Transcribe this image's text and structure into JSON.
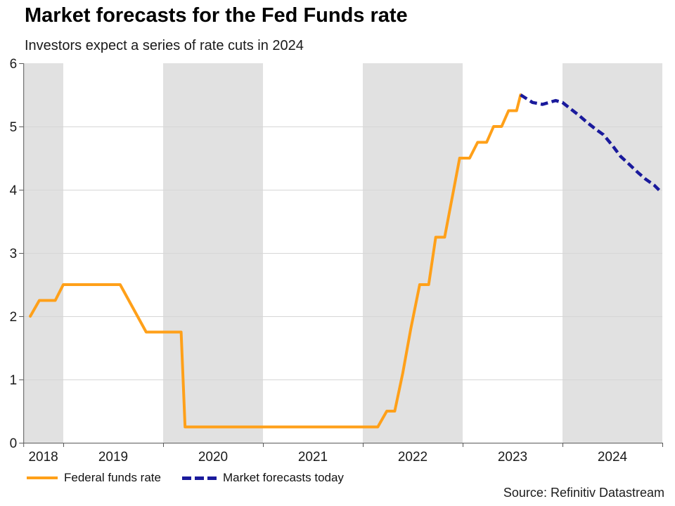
{
  "title": "Market forecasts for the Fed Funds rate",
  "subtitle": "Investors expect a series of rate cuts in 2024",
  "source": "Source: Refinitiv Datastream",
  "legend": [
    {
      "label": "Federal funds rate",
      "color": "#FFA019",
      "style": "solid"
    },
    {
      "label": "Market forecasts today",
      "color": "#1A1A9C",
      "style": "dashed"
    }
  ],
  "colors": {
    "federal_funds_line": "#FFA019",
    "forecast_line": "#1A1A9C",
    "year_band": "#E1E1E1",
    "gridline": "#D6D6D6",
    "axis": "#595959",
    "label_text": "#1A1A1A"
  },
  "chart_data": {
    "type": "line",
    "title": "Market forecasts for the Fed Funds rate",
    "subtitle": "Investors expect a series of rate cuts in 2024",
    "xlabel": "",
    "ylabel": "",
    "x_start": 2018.6,
    "x_end": 2025.0,
    "x_tick_years": [
      2018.6,
      2019,
      2020,
      2021,
      2022,
      2023,
      2024,
      2025
    ],
    "x_year_labels": [
      "2018",
      "2019",
      "2020",
      "2021",
      "2022",
      "2023",
      "2024"
    ],
    "y_min": 0,
    "y_max": 6,
    "y_ticks": [
      0,
      1,
      2,
      3,
      4,
      5,
      6
    ],
    "grid": "horizontal-only",
    "legend_position": "bottom-left",
    "shaded_year_bands": [
      [
        2018.6,
        2019
      ],
      [
        2020,
        2021
      ],
      [
        2022,
        2023
      ],
      [
        2024,
        2025
      ]
    ],
    "series": [
      {
        "name": "Federal funds rate",
        "line_style": "solid",
        "color": "#FFA019",
        "points": [
          [
            2018.67,
            2.0
          ],
          [
            2018.76,
            2.25
          ],
          [
            2018.92,
            2.25
          ],
          [
            2019.0,
            2.5
          ],
          [
            2019.57,
            2.5
          ],
          [
            2019.83,
            1.75
          ],
          [
            2020.18,
            1.75
          ],
          [
            2020.22,
            0.25
          ],
          [
            2022.15,
            0.25
          ],
          [
            2022.24,
            0.5
          ],
          [
            2022.32,
            0.5
          ],
          [
            2022.4,
            1.1
          ],
          [
            2022.48,
            1.8
          ],
          [
            2022.57,
            2.5
          ],
          [
            2022.66,
            2.5
          ],
          [
            2022.73,
            3.25
          ],
          [
            2022.82,
            3.25
          ],
          [
            2022.91,
            4.0
          ],
          [
            2022.97,
            4.5
          ],
          [
            2023.07,
            4.5
          ],
          [
            2023.15,
            4.75
          ],
          [
            2023.24,
            4.75
          ],
          [
            2023.31,
            5.0
          ],
          [
            2023.39,
            5.0
          ],
          [
            2023.46,
            5.25
          ],
          [
            2023.54,
            5.25
          ],
          [
            2023.58,
            5.5
          ]
        ]
      },
      {
        "name": "Market forecasts today",
        "line_style": "dashed",
        "color": "#1A1A9C",
        "points": [
          [
            2023.58,
            5.5
          ],
          [
            2023.7,
            5.38
          ],
          [
            2023.8,
            5.35
          ],
          [
            2023.93,
            5.41
          ],
          [
            2024.0,
            5.38
          ],
          [
            2024.08,
            5.28
          ],
          [
            2024.17,
            5.17
          ],
          [
            2024.25,
            5.06
          ],
          [
            2024.33,
            4.96
          ],
          [
            2024.41,
            4.87
          ],
          [
            2024.5,
            4.7
          ],
          [
            2024.58,
            4.53
          ],
          [
            2024.67,
            4.4
          ],
          [
            2024.75,
            4.28
          ],
          [
            2024.83,
            4.17
          ],
          [
            2024.92,
            4.07
          ],
          [
            2024.99,
            3.96
          ]
        ]
      }
    ]
  }
}
